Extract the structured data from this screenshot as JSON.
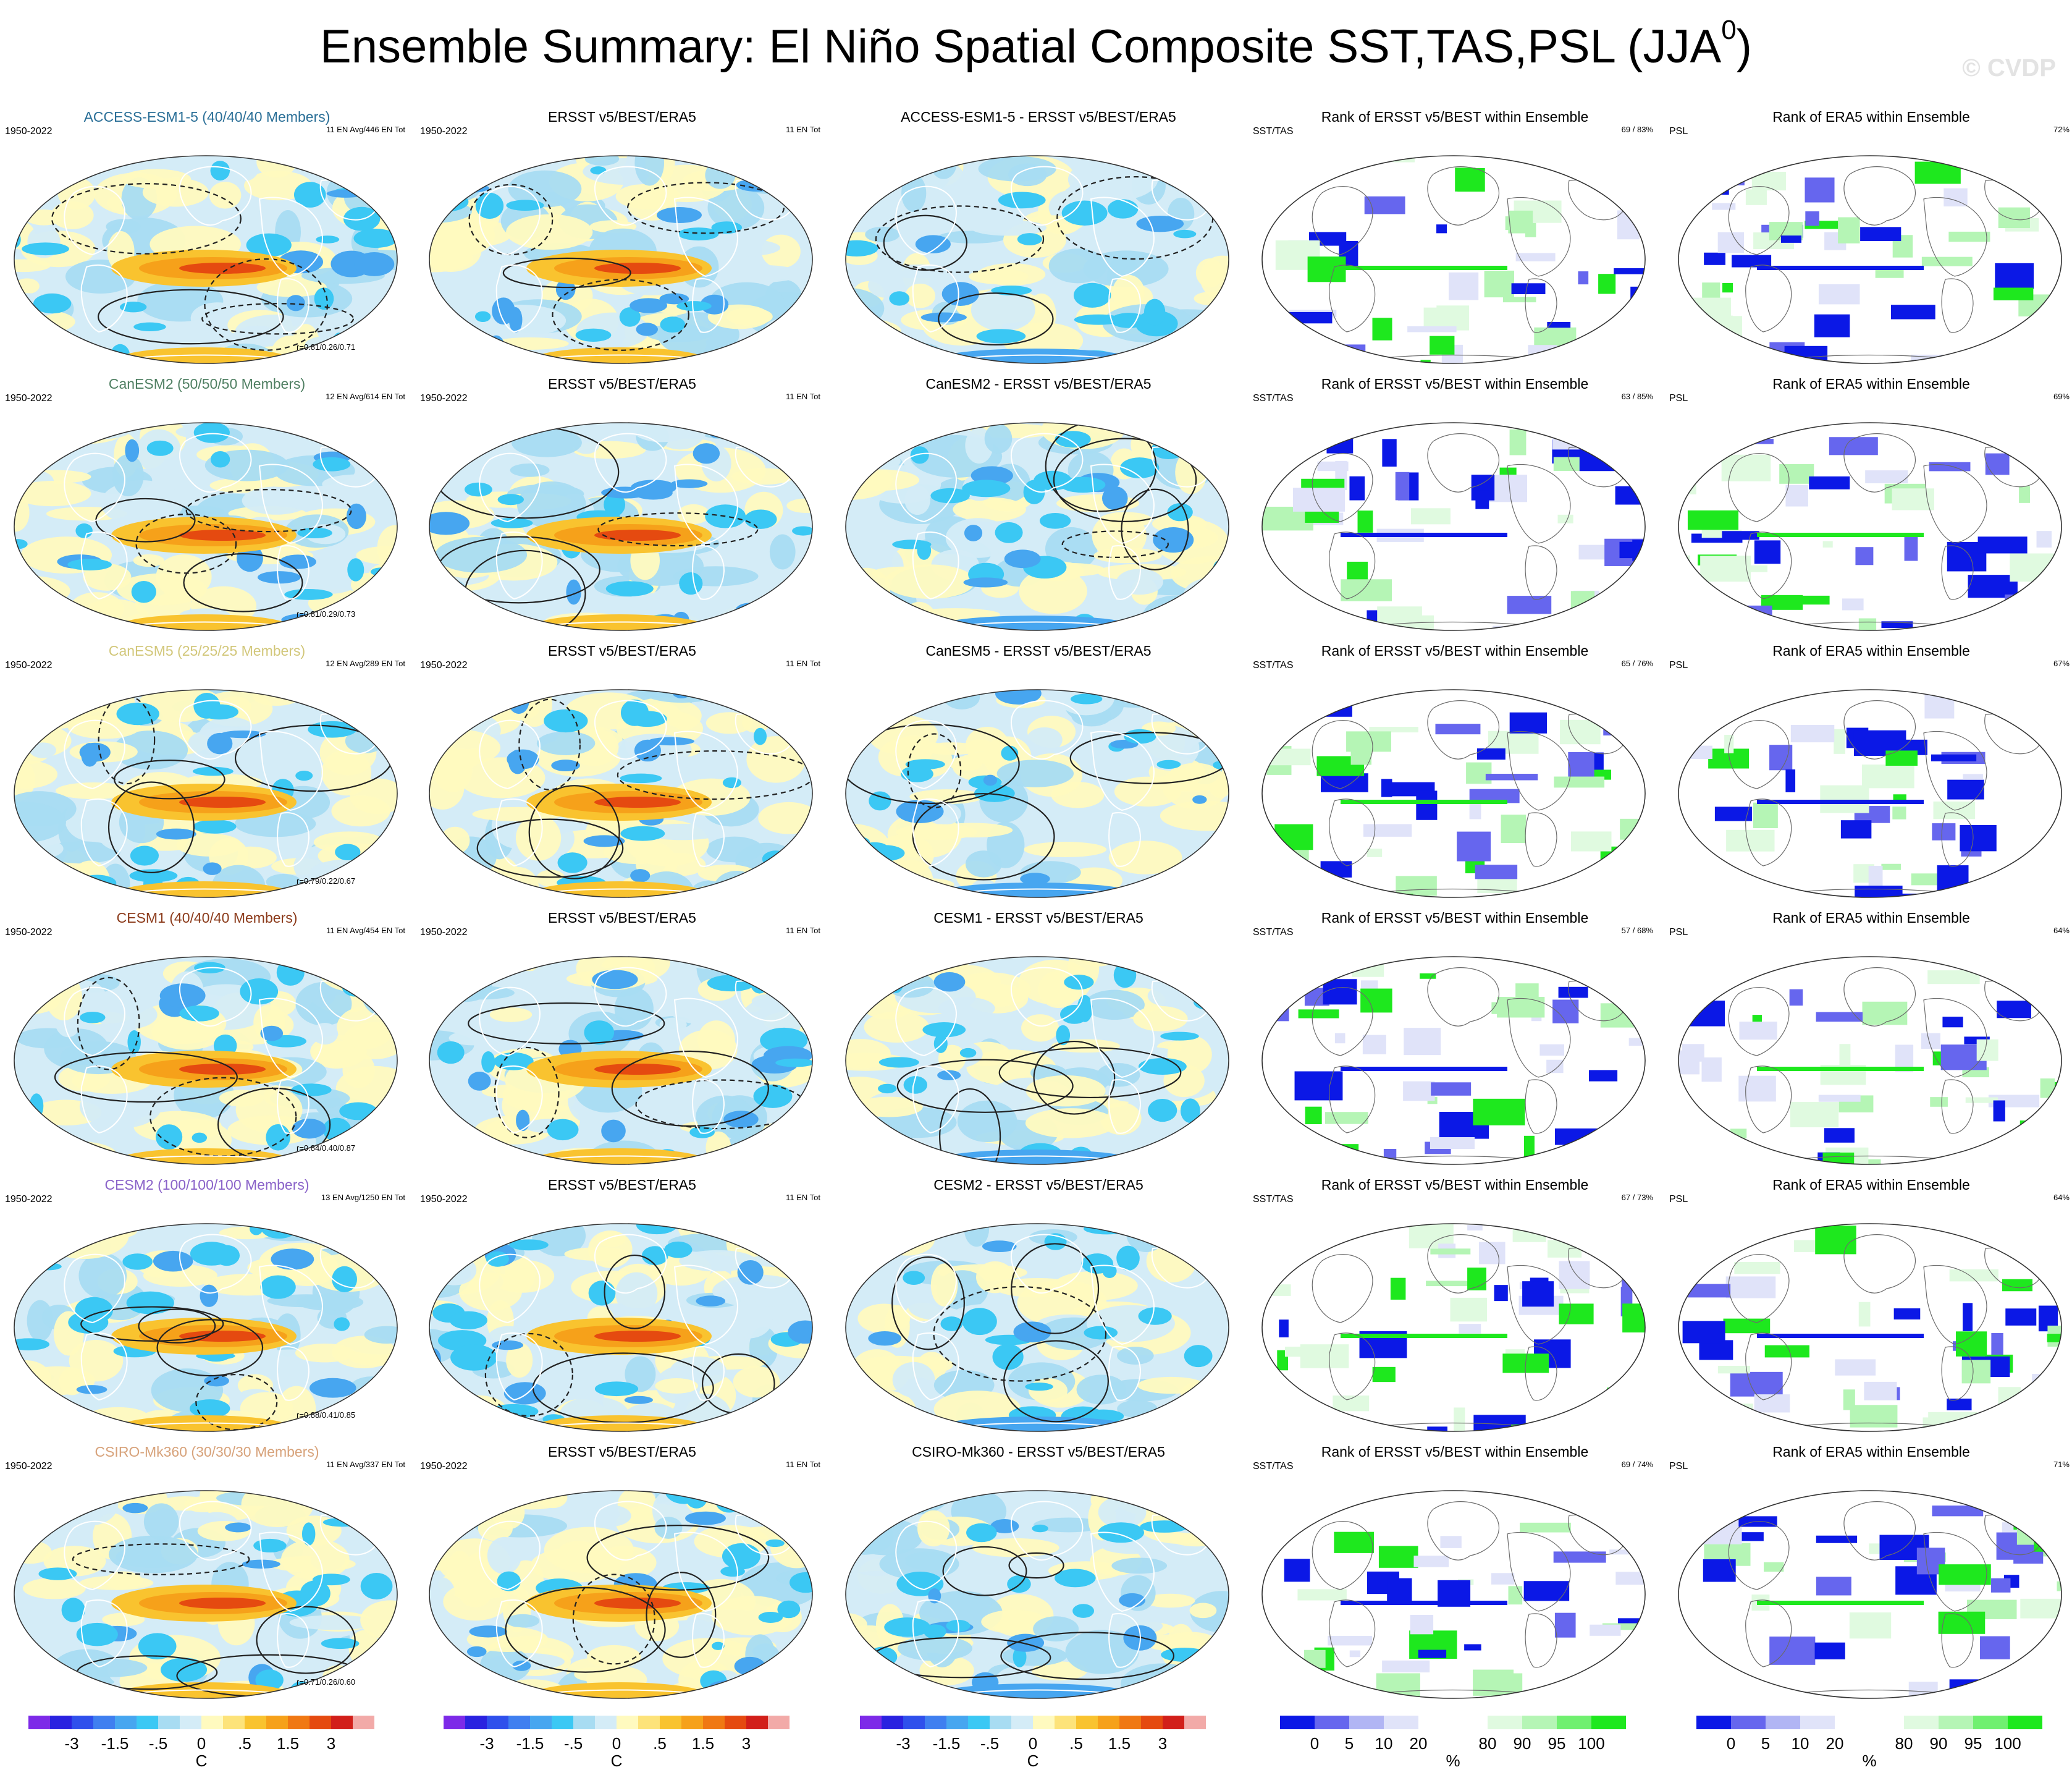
{
  "figure": {
    "title": "Ensemble Summary: El Niño Spatial Composite SST,TAS,PSL (JJA",
    "title_sup": "0",
    "title_close": ")",
    "watermark": "© CVDP"
  },
  "rows": [
    {
      "model": "ACCESS-ESM1-5",
      "model_title": "ACCESS-ESM1-5 (40/40/40 Members)",
      "model_color": "#2a6f97",
      "ens_info": "11 EN Avg/446 EN Tot",
      "corr": "r=0.81/0.26/0.71",
      "diff_title": "ACCESS-ESM1-5 - ERSST v5/BEST/ERA5",
      "sst_rank_pct": "69 /  83%",
      "psl_rank_pct": "72%"
    },
    {
      "model": "CanESM2",
      "model_title": "CanESM2 (50/50/50 Members)",
      "model_color": "#4f7f62",
      "ens_info": "12 EN Avg/614 EN Tot",
      "corr": "r=0.81/0.29/0.73",
      "diff_title": "CanESM2 - ERSST v5/BEST/ERA5",
      "sst_rank_pct": "63 /  85%",
      "psl_rank_pct": "69%"
    },
    {
      "model": "CanESM5",
      "model_title": "CanESM5 (25/25/25 Members)",
      "model_color": "#d2c77a",
      "ens_info": "12 EN Avg/289 EN Tot",
      "corr": "r=0.79/0.22/0.67",
      "diff_title": "CanESM5 - ERSST v5/BEST/ERA5",
      "sst_rank_pct": "65 /  76%",
      "psl_rank_pct": "67%"
    },
    {
      "model": "CESM1",
      "model_title": "CESM1 (40/40/40 Members)",
      "model_color": "#8b3a1a",
      "ens_info": "11 EN Avg/454 EN Tot",
      "corr": "r=0.84/0.40/0.87",
      "diff_title": "CESM1 - ERSST v5/BEST/ERA5",
      "sst_rank_pct": "57 /  68%",
      "psl_rank_pct": "64%"
    },
    {
      "model": "CESM2",
      "model_title": "CESM2 (100/100/100 Members)",
      "model_color": "#8a63c9",
      "ens_info": "13 EN Avg/1250 EN Tot",
      "corr": "r=0.88/0.41/0.85",
      "diff_title": "CESM2 - ERSST v5/BEST/ERA5",
      "sst_rank_pct": "67 /  73%",
      "psl_rank_pct": "64%"
    },
    {
      "model": "CSIRO-Mk360",
      "model_title": "CSIRO-Mk360 (30/30/30 Members)",
      "model_color": "#d7a27a",
      "ens_info": "11 EN Avg/337 EN Tot",
      "corr": "r=0.71/0.26/0.60",
      "diff_title": "CSIRO-Mk360 - ERSST v5/BEST/ERA5",
      "sst_rank_pct": "69 /  74%",
      "psl_rank_pct": "71%"
    }
  ],
  "common": {
    "period": "1950-2022",
    "obs_title": "ERSST v5/BEST/ERA5",
    "obs_info": "11 EN Tot",
    "rank_sst_title": "Rank of ERSST v5/BEST within Ensemble",
    "rank_psl_title": "Rank of ERA5 within Ensemble",
    "sst_label": "SST/TAS",
    "psl_label": "PSL"
  },
  "colorbars": {
    "anomaly": {
      "colors": [
        "#7d2ae8",
        "#2a22e0",
        "#2f50ec",
        "#3f7ff0",
        "#47a6f0",
        "#3bc8f4",
        "#a8dcf2",
        "#d4ecf7",
        "#fffabf",
        "#fde37a",
        "#f9c32f",
        "#f6a11a",
        "#f07813",
        "#e54a10",
        "#d21f1a",
        "#f2aaa8"
      ],
      "labels": [
        "-3",
        "-1.5",
        "-.5",
        "0",
        ".5",
        "1.5",
        "3"
      ],
      "unit": "C"
    },
    "rank": {
      "colors": [
        "#0b18e6",
        "#6666ee",
        "#b1b5f4",
        "#e0e3f9",
        "#ffffff",
        "#ffffff",
        "#e0fae0",
        "#b5f5b5",
        "#70f070",
        "#1ee81e"
      ],
      "labels": [
        "0",
        "5",
        "10",
        "20",
        "80",
        "90",
        "95",
        "100"
      ],
      "unit": "%"
    }
  }
}
